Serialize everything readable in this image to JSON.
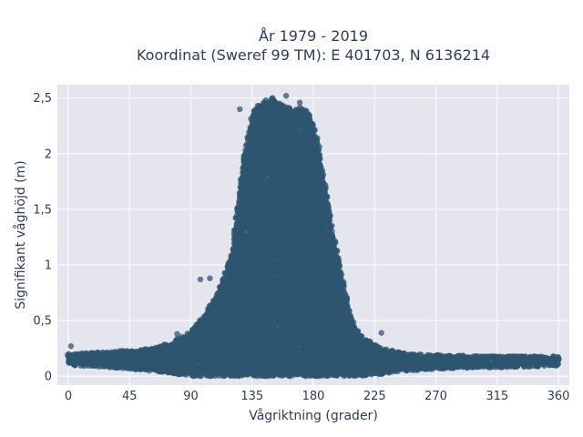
{
  "chart_data": {
    "type": "scatter",
    "title": "År 1979 - 2019",
    "subtitle": "Koordinat (Sweref 99 TM): E 401703, N 6136214",
    "xlabel": "Vågriktning (grader)",
    "ylabel": "Signifikant våghöjd (m)",
    "xlim": [
      -8,
      368
    ],
    "ylim": [
      -0.08,
      2.62
    ],
    "xticks": [
      0,
      45,
      90,
      135,
      180,
      225,
      270,
      315,
      360
    ],
    "xtick_labels": [
      "0",
      "45",
      "90",
      "135",
      "180",
      "225",
      "270",
      "315",
      "360"
    ],
    "yticks": [
      0,
      0.5,
      1,
      1.5,
      2,
      2.5
    ],
    "ytick_labels": [
      "0",
      "0,5",
      "1",
      "1,5",
      "2",
      "2,5"
    ],
    "grid": true,
    "marker_color": "#2e5570",
    "plot_background": "#e5e5ee",
    "grid_color": "#ffffff",
    "series": [
      {
        "envelope": {
          "x": [
            0,
            30,
            60,
            75,
            90,
            100,
            110,
            120,
            125,
            130,
            135,
            140,
            145,
            150,
            155,
            160,
            165,
            170,
            175,
            180,
            185,
            190,
            195,
            200,
            205,
            210,
            220,
            230,
            250,
            280,
            320,
            360
          ],
          "y_min": [
            0.1,
            0.08,
            0.05,
            0.03,
            0.0,
            0.0,
            0.0,
            0.0,
            0.0,
            0.0,
            0.0,
            0.0,
            0.0,
            0.0,
            0.0,
            0.0,
            0.0,
            0.0,
            0.0,
            0.0,
            0.0,
            0.0,
            0.0,
            0.0,
            0.0,
            0.0,
            0.0,
            0.02,
            0.05,
            0.07,
            0.08,
            0.09
          ],
          "y_max": [
            0.2,
            0.22,
            0.25,
            0.3,
            0.4,
            0.55,
            0.75,
            1.1,
            1.55,
            2.05,
            2.35,
            2.45,
            2.48,
            2.5,
            2.45,
            2.42,
            2.4,
            2.42,
            2.38,
            2.3,
            2.0,
            1.6,
            1.25,
            0.95,
            0.65,
            0.45,
            0.32,
            0.25,
            0.2,
            0.19,
            0.18,
            0.18
          ]
        },
        "outliers": [
          [
            2,
            0.27
          ],
          [
            97,
            0.87
          ],
          [
            104,
            0.88
          ],
          [
            80,
            0.38
          ],
          [
            230,
            0.39
          ],
          [
            150,
            2.5
          ],
          [
            160,
            2.52
          ],
          [
            145,
            2.48
          ],
          [
            170,
            2.46
          ],
          [
            126,
            2.4
          ]
        ]
      }
    ]
  }
}
